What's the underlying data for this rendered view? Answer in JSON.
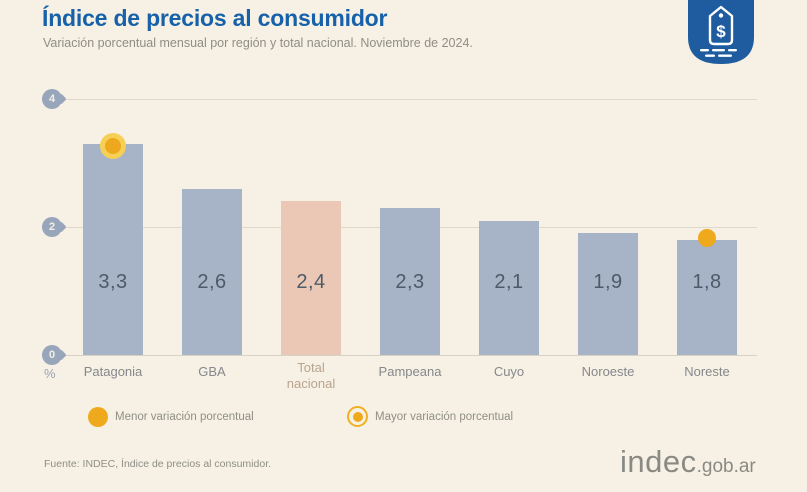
{
  "header": {
    "title": "Índice de precios al consumidor",
    "subtitle": "Variación porcentual mensual por región y total nacional. Noviembre de 2024."
  },
  "chart_data": {
    "type": "bar",
    "title": "Índice de precios al consumidor",
    "subtitle": "Variación porcentual mensual por región y total nacional. Noviembre de 2024.",
    "categories": [
      "Patagonia",
      "GBA",
      "Total nacional",
      "Pampeana",
      "Cuyo",
      "Noroeste",
      "Noreste"
    ],
    "values": [
      3.3,
      2.6,
      2.4,
      2.3,
      2.1,
      1.9,
      1.8
    ],
    "value_labels": [
      "3,3",
      "2,6",
      "2,4",
      "2,3",
      "2,1",
      "1,9",
      "1,8"
    ],
    "xlabel": "",
    "ylabel": "%",
    "ylim": [
      0,
      4
    ],
    "yticks": [
      0,
      2,
      4
    ],
    "grid": true,
    "legend_position": "bottom",
    "highlighted_category": "Total nacional",
    "marker_mayor_category": "Patagonia",
    "marker_menor_category": "Noreste",
    "colors": {
      "bar": "#a7b3c7",
      "highlight_bar": "#eac8b5",
      "marker_gold": "#efa91c",
      "marker_ring": "#f6d054",
      "title_blue": "#1661a9",
      "badge_blue": "#1f5c9f"
    }
  },
  "legend": [
    {
      "marker": "solid-dot",
      "label": "Menor variación porcentual"
    },
    {
      "marker": "ring-dot",
      "label": "Mayor variación porcentual"
    }
  ],
  "footer": {
    "source": "Fuente: INDEC, Índice de precios al consumidor.",
    "logo": "indec",
    "logo_suffix": ".gob.ar"
  },
  "icons": {
    "tag_badge": "price-tag-icon",
    "tag_symbol": "$"
  }
}
